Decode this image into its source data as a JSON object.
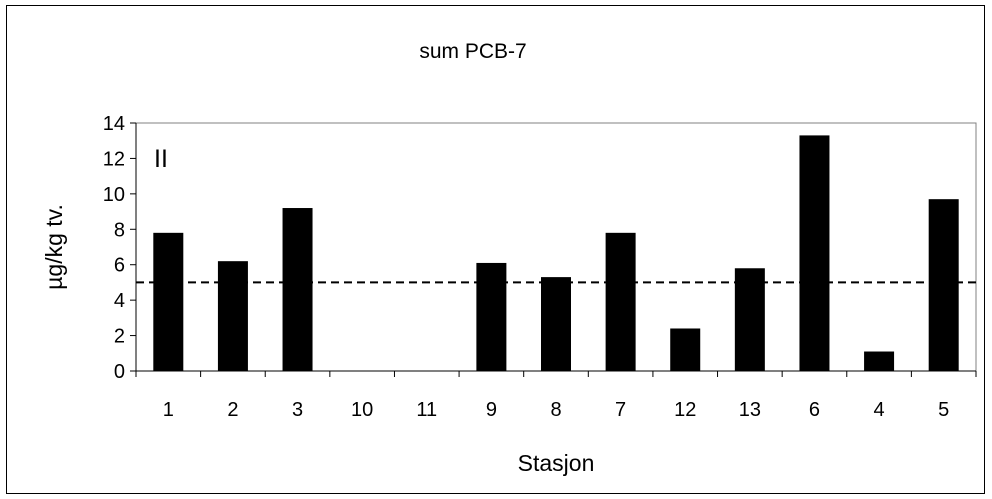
{
  "chart_data": {
    "type": "bar",
    "title": "sum PCB-7",
    "xlabel": "Stasjon",
    "ylabel": "µg/kg tv.",
    "annotation": "II",
    "categories": [
      "1",
      "2",
      "3",
      "10",
      "11",
      "9",
      "8",
      "7",
      "12",
      "13",
      "6",
      "4",
      "5"
    ],
    "values": [
      7.8,
      6.2,
      9.2,
      0,
      0,
      6.1,
      5.3,
      7.8,
      2.4,
      5.8,
      13.3,
      1.1,
      9.7
    ],
    "ylim": [
      0,
      14
    ],
    "yticks": [
      0,
      2,
      4,
      6,
      8,
      10,
      12,
      14
    ],
    "reference_line": 5,
    "bar_color": "#000000",
    "grid": false
  }
}
